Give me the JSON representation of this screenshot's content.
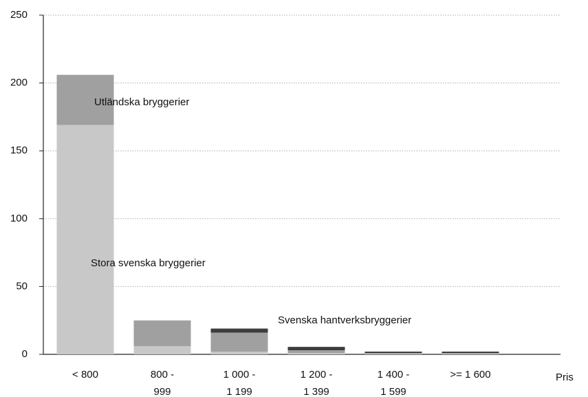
{
  "chart_data": {
    "type": "stacked_bar",
    "categories": [
      [
        "< 800"
      ],
      [
        "800 -",
        "999"
      ],
      [
        "1 000 -",
        "1 199"
      ],
      [
        "1 200 -",
        "1 399"
      ],
      [
        "1 400 -",
        "1 599"
      ],
      [
        ">= 1 600"
      ]
    ],
    "x_label": "Pris",
    "series": [
      {
        "name": "Stora svenska bryggerier",
        "color": "#c8c8c8",
        "values": [
          169,
          6,
          2,
          1,
          0.5,
          0.5
        ]
      },
      {
        "name": "Utländska bryggerier",
        "color": "#a0a0a0",
        "values": [
          37,
          19,
          14,
          2,
          0.5,
          0.5
        ]
      },
      {
        "name": "Svenska hantverksbryggerier",
        "color": "#3c3c3c",
        "values": [
          0,
          0,
          3,
          2.5,
          1,
          1
        ]
      }
    ],
    "ylim": [
      0,
      250
    ],
    "yticks": [
      0,
      50,
      100,
      150,
      200,
      250
    ],
    "grid": true
  }
}
